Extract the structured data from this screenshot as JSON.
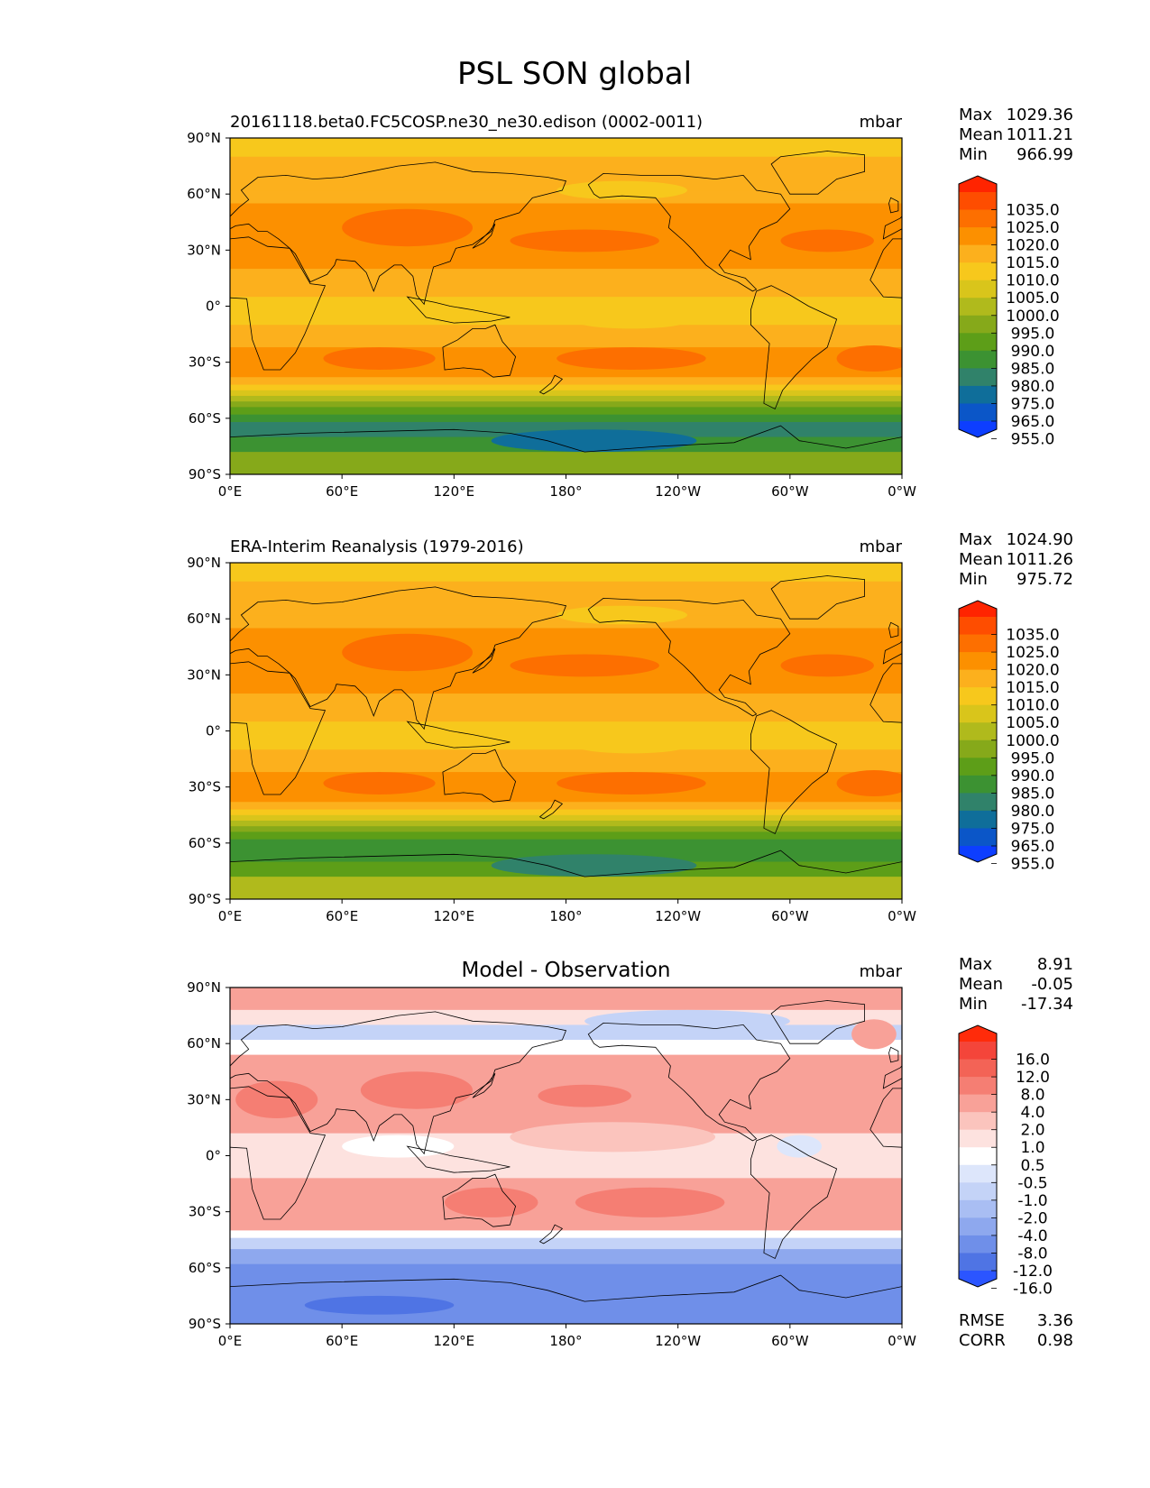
{
  "title": "PSL SON global",
  "units": "mbar",
  "lat_ticks": [
    "90°N",
    "60°N",
    "30°N",
    "0°",
    "30°S",
    "60°S",
    "90°S"
  ],
  "lon_ticks": [
    "0°E",
    "60°E",
    "120°E",
    "180°",
    "120°W",
    "60°W",
    "0°W"
  ],
  "stat_labels": {
    "max": "Max",
    "mean": "Mean",
    "min": "Min",
    "rmse": "RMSE",
    "corr": "CORR"
  },
  "panels": [
    {
      "id": "test",
      "title": "20161118.beta0.FC5COSP.ne30_ne30.edison (0002-0011)",
      "title_style": "left",
      "units": "mbar",
      "stats": {
        "max": "1029.36",
        "mean": "1011.21",
        "min": "966.99"
      },
      "colorbar": {
        "labels": [
          "1035.0",
          "1025.0",
          "1020.0",
          "1015.0",
          "1010.0",
          "1005.0",
          "1000.0",
          "995.0",
          "990.0",
          "985.0",
          "980.0",
          "975.0",
          "965.0",
          "955.0"
        ],
        "colors": [
          "#ff2400",
          "#fe4d00",
          "#fd6f00",
          "#fc9000",
          "#fcb01d",
          "#f7c81c",
          "#d9c51b",
          "#b0ba1c",
          "#86a91a",
          "#5d9e18",
          "#3c9232",
          "#30826a",
          "#0f6e9a",
          "#0b56c8",
          "#0d3eff"
        ]
      }
    },
    {
      "id": "reference",
      "title": "ERA-Interim Reanalysis (1979-2016)",
      "title_style": "left",
      "units": "mbar",
      "stats": {
        "max": "1024.90",
        "mean": "1011.26",
        "min": "975.72"
      },
      "colorbar": {
        "labels": [
          "1035.0",
          "1025.0",
          "1020.0",
          "1015.0",
          "1010.0",
          "1005.0",
          "1000.0",
          "995.0",
          "990.0",
          "985.0",
          "980.0",
          "975.0",
          "965.0",
          "955.0"
        ],
        "colors": [
          "#ff2400",
          "#fe4d00",
          "#fd6f00",
          "#fc9000",
          "#fcb01d",
          "#f7c81c",
          "#d9c51b",
          "#b0ba1c",
          "#86a91a",
          "#5d9e18",
          "#3c9232",
          "#30826a",
          "#0f6e9a",
          "#0b56c8",
          "#0d3eff"
        ]
      }
    },
    {
      "id": "diff",
      "title": "Model - Observation",
      "title_style": "center",
      "units": "mbar",
      "stats": {
        "max": "8.91",
        "mean": "-0.05",
        "min": "-17.34",
        "rmse": "3.36",
        "corr": "0.98"
      },
      "colorbar": {
        "labels": [
          "16.0",
          "12.0",
          "8.0",
          "4.0",
          "2.0",
          "1.0",
          "0.5",
          "-0.5",
          "-1.0",
          "-2.0",
          "-4.0",
          "-8.0",
          "-12.0",
          "-16.0"
        ],
        "colors": [
          "#ff2b0a",
          "#f4453a",
          "#f36356",
          "#f57e73",
          "#f8a198",
          "#fbc4bd",
          "#fde2df",
          "#ffffff",
          "#dde6fb",
          "#c4d3f7",
          "#a9bef3",
          "#8ea8ee",
          "#6f8fe9",
          "#4f74e4",
          "#2b55ff"
        ]
      }
    }
  ]
}
